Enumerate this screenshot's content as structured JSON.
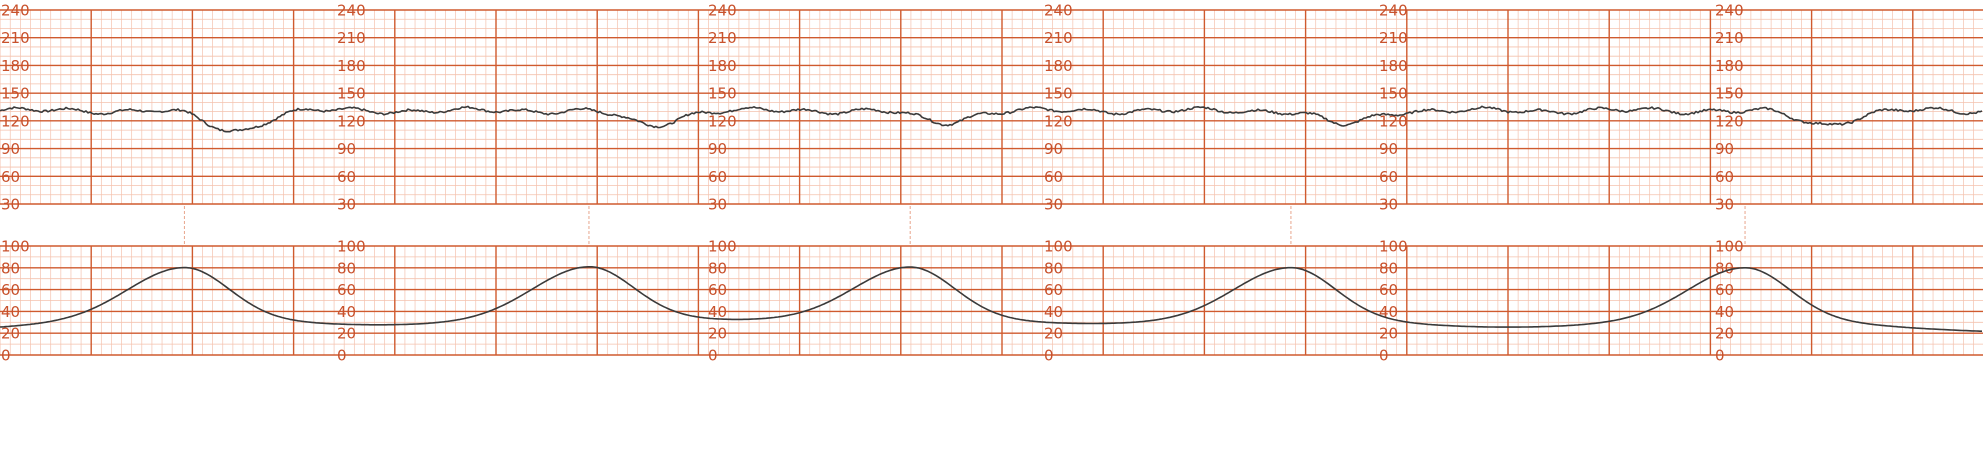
{
  "chart_data": {
    "type": "line",
    "grid": true,
    "colors": {
      "major_grid": "#cf5a2e",
      "minor_grid": "#f4c2ae",
      "tick_label": "#c8512c",
      "trace": "#3a3a3a",
      "marker": "#e8a58c"
    },
    "panels": [
      {
        "name": "fetal-heart-rate",
        "ylim": [
          30,
          240
        ],
        "y_ticks": [
          "240",
          "210",
          "180",
          "150",
          "120",
          "90",
          "60",
          "30"
        ],
        "y_tick_values": [
          240,
          210,
          180,
          150,
          120,
          90,
          60,
          30
        ],
        "label_columns": 6,
        "series": [
          {
            "baseline": 131,
            "decelerations": [
              {
                "center": 0.118,
                "width": 0.045,
                "depth": 22
              },
              {
                "center": 0.328,
                "width": 0.04,
                "depth": 16
              },
              {
                "center": 0.475,
                "width": 0.04,
                "depth": 13
              },
              {
                "center": 0.678,
                "width": 0.04,
                "depth": 15
              },
              {
                "center": 0.92,
                "width": 0.045,
                "depth": 15
              }
            ]
          }
        ]
      },
      {
        "name": "uterine-contractions",
        "ylim": [
          0,
          100
        ],
        "y_ticks": [
          "100",
          "80",
          "60",
          "40",
          "20",
          "0"
        ],
        "y_tick_values": [
          100,
          80,
          60,
          40,
          20,
          0
        ],
        "label_columns": 6,
        "series": [
          {
            "baseline": 20,
            "contractions": [
              {
                "peak": 0.093,
                "height": 80
              },
              {
                "peak": 0.297,
                "height": 80
              },
              {
                "peak": 0.459,
                "height": 80
              },
              {
                "peak": 0.651,
                "height": 80
              },
              {
                "peak": 0.88,
                "height": 80
              }
            ]
          }
        ]
      }
    ]
  }
}
